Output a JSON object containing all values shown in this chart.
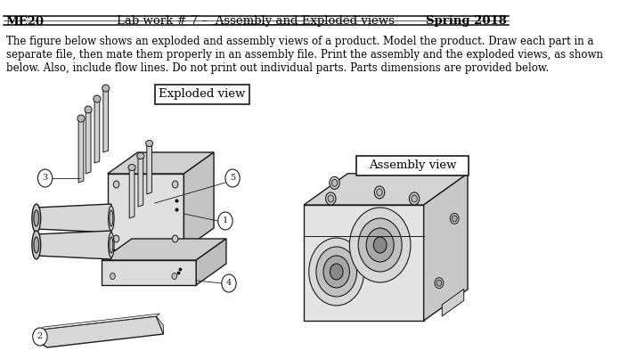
{
  "header_left": "ME20",
  "header_center": "Lab work # 7 –  Assembly and Exploded views",
  "header_right": "Spring 2018",
  "body_text_line1": "The figure below shows an exploded and assembly views of a product. Model the product. Draw each part in a",
  "body_text_line2": "separate file, then mate them properly in an assembly file. Print the assembly and the exploded views, as shown",
  "body_text_line3": "below. Also, include flow lines. Do not print out individual parts. Parts dimensions are provided below.",
  "exploded_label": "Exploded view",
  "assembly_label": "Assembly view",
  "bg_color": "#ffffff",
  "text_color": "#000000",
  "gc": "#1a1a1a",
  "lc": "#444444",
  "header_fontsize": 9.5,
  "body_fontsize": 8.5,
  "label_fontsize": 9.5
}
